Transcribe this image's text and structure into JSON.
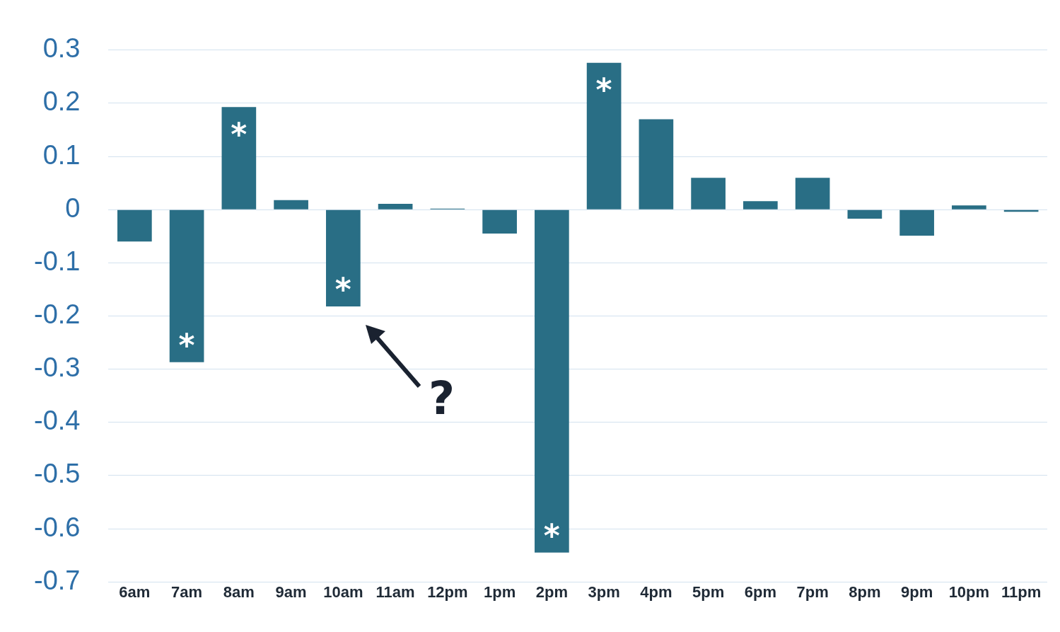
{
  "chart_data": {
    "type": "bar",
    "categories": [
      "6am",
      "7am",
      "8am",
      "9am",
      "10am",
      "11am",
      "12pm",
      "1pm",
      "2pm",
      "3pm",
      "4pm",
      "5pm",
      "6pm",
      "7pm",
      "8pm",
      "9pm",
      "10pm",
      "11pm"
    ],
    "values": [
      -0.06,
      -0.287,
      0.193,
      0.018,
      -0.182,
      0.011,
      0.002,
      -0.045,
      -0.645,
      0.276,
      0.17,
      0.06,
      0.016,
      0.06,
      -0.017,
      -0.049,
      0.008,
      -0.004
    ],
    "color": "#296e85",
    "ylim": [
      -0.7,
      0.3
    ],
    "yticks": [
      -0.7,
      -0.6,
      -0.5,
      -0.4,
      -0.3,
      -0.2,
      -0.1,
      0,
      0.1,
      0.2,
      0.3
    ],
    "grid": "y",
    "legend": false,
    "annotations": [
      {
        "text": "*",
        "x": "7am",
        "y": -0.287
      },
      {
        "text": "*",
        "x": "8am",
        "y": 0.193
      },
      {
        "text": "*",
        "x": "10am",
        "y": -0.182
      },
      {
        "text": "*",
        "x": "2pm",
        "y": -0.645
      },
      {
        "text": "*",
        "x": "3pm",
        "y": 0.276
      },
      "?"
    ]
  }
}
